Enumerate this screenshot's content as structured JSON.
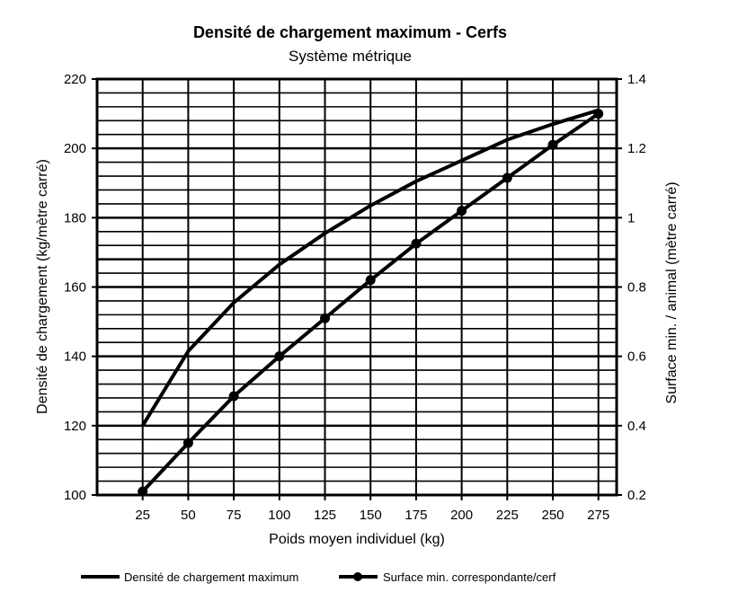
{
  "chart_data": {
    "type": "line",
    "title": "Densité de chargement maximum - Cerfs",
    "subtitle": "Système métrique",
    "xlabel": "Poids moyen individuel (kg)",
    "ylabel": "Densité de chargement (kg/mètre carré)",
    "y2label": "Surface min. / animal (mètre carré)",
    "x": [
      25,
      50,
      75,
      100,
      125,
      150,
      175,
      200,
      225,
      250,
      275
    ],
    "x_ticks": [
      "25",
      "50",
      "75",
      "100",
      "125",
      "150",
      "175",
      "200",
      "225",
      "250",
      "275"
    ],
    "xlim": [
      0,
      285
    ],
    "ylim": [
      100,
      220
    ],
    "y_ticks": [
      "100",
      "120",
      "140",
      "160",
      "180",
      "200",
      "220"
    ],
    "y2lim": [
      0.2,
      1.4
    ],
    "y2_ticks": [
      "0.2",
      "0.4",
      "0.6",
      "0.8",
      "1",
      "1.2",
      "1.4"
    ],
    "grid": true,
    "legend_position": "bottom",
    "series": [
      {
        "name": "Densité de chargement maximum",
        "axis": "left",
        "marker": "none",
        "values": [
          120,
          141.5,
          155.5,
          166.5,
          175.5,
          183.5,
          190.5,
          196.5,
          202.5,
          207,
          211
        ]
      },
      {
        "name": "Surface min. correspondante/cerf",
        "axis": "right",
        "marker": "circle",
        "values": [
          0.21,
          0.35,
          0.485,
          0.6,
          0.71,
          0.82,
          0.925,
          1.02,
          1.115,
          1.21,
          1.3
        ]
      }
    ]
  }
}
